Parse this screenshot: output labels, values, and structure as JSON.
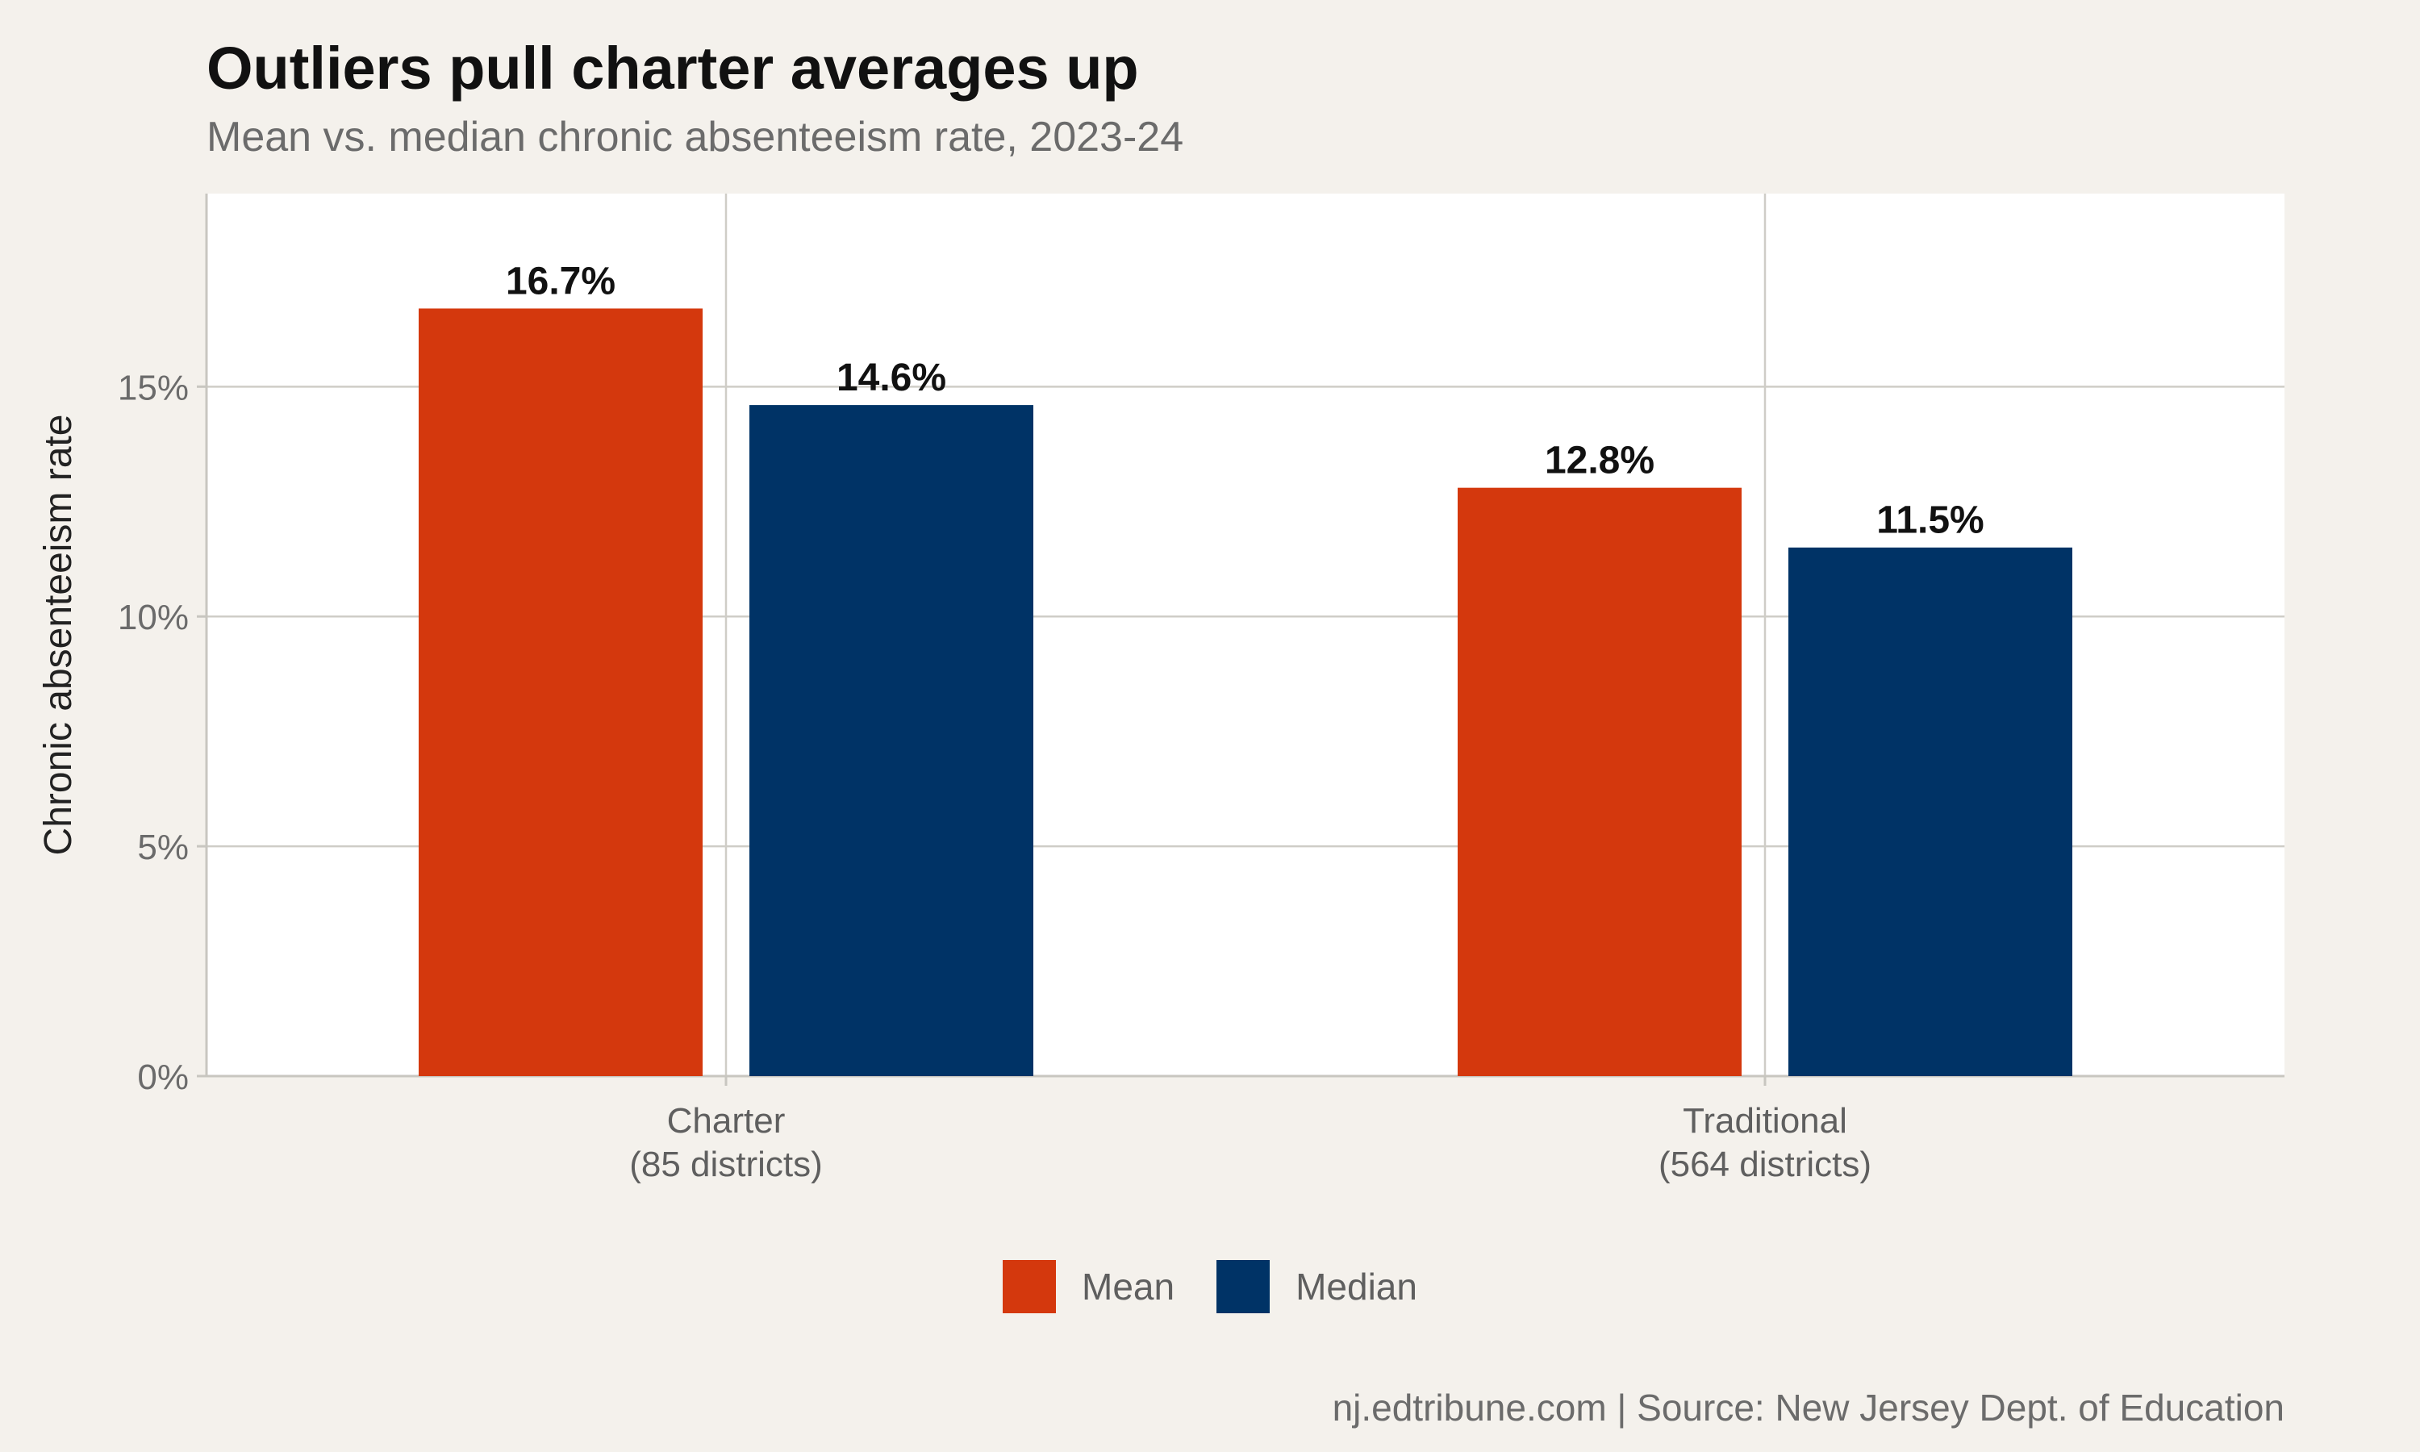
{
  "chart_data": {
    "type": "bar",
    "title": "Outliers pull charter averages up",
    "subtitle": "Mean vs. median chronic absenteeism rate, 2023-24",
    "ylabel": "Chronic absenteeism rate",
    "xlabel": "",
    "categories": [
      [
        "Charter",
        "(85 districts)"
      ],
      [
        "Traditional",
        "(564 districts)"
      ]
    ],
    "series": [
      {
        "name": "Mean",
        "color": "#d4380d",
        "values": [
          16.7,
          12.8
        ],
        "labels": [
          "16.7%",
          "12.8%"
        ]
      },
      {
        "name": "Median",
        "color": "#003366",
        "values": [
          14.6,
          11.5
        ],
        "labels": [
          "14.6%",
          "11.5%"
        ]
      }
    ],
    "ylim": [
      0,
      19.2
    ],
    "yticks": [
      0,
      5,
      10,
      15
    ],
    "ytick_labels": [
      "0%",
      "5%",
      "10%",
      "15%"
    ],
    "grid": true,
    "legend": "bottom",
    "caption": "nj.edtribune.com | Source: New Jersey Dept. of Education"
  }
}
